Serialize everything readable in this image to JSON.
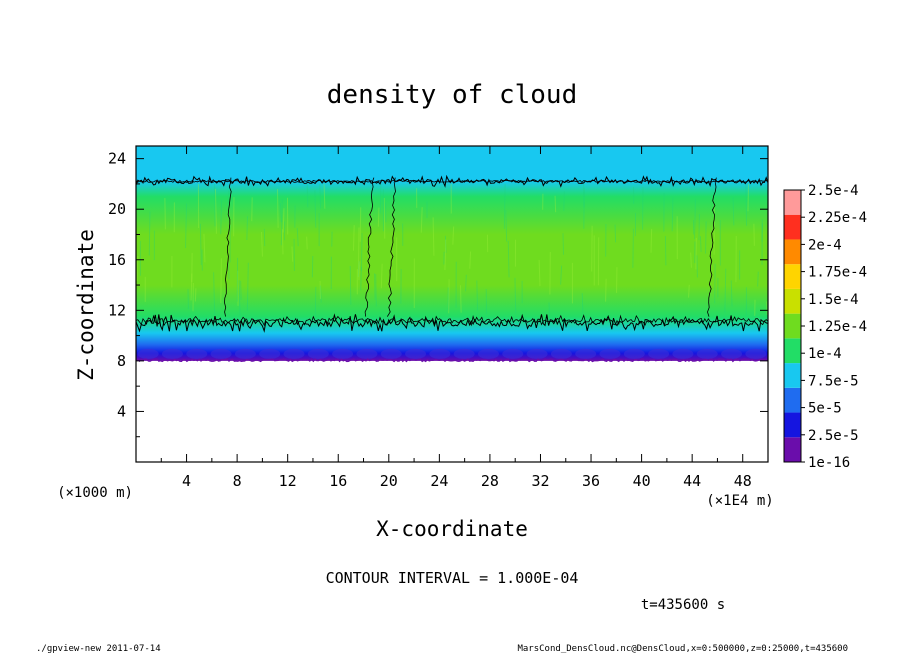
{
  "chart_data": {
    "type": "heatmap",
    "title": "density of cloud",
    "xlabel": "X-coordinate",
    "ylabel": "Z-coordinate",
    "x_unit": "(×1E4 m)",
    "y_unit": "(×1000 m)",
    "xlim": [
      0,
      50
    ],
    "ylim": [
      0,
      25
    ],
    "x_ticks": [
      "4",
      "8",
      "12",
      "16",
      "20",
      "24",
      "28",
      "32",
      "36",
      "40",
      "44",
      "48"
    ],
    "y_ticks": [
      "4",
      "8",
      "12",
      "16",
      "20",
      "24"
    ],
    "colorbar": {
      "labels": [
        "1e-16",
        "2.5e-5",
        "5e-5",
        "7.5e-5",
        "1e-4",
        "1.25e-4",
        "1.5e-4",
        "1.75e-4",
        "2e-4",
        "2.25e-4",
        "2.5e-4"
      ],
      "colors": [
        "#6a0dab",
        "#1515e0",
        "#1f6cf0",
        "#18c8f0",
        "#22dd66",
        "#6fdc1f",
        "#c9e000",
        "#ffd400",
        "#ff8a00",
        "#ff2f1f",
        "#ff9a9a"
      ]
    },
    "cloud_layer": {
      "bottom_z": 8,
      "top_z": 22.3,
      "upper_contour_z": 22.2,
      "lower_contour_z": 11,
      "vertical_profile": [
        {
          "z": 8.0,
          "value": 1e-16
        },
        {
          "z": 8.6,
          "value": 2.5e-05
        },
        {
          "z": 9.3,
          "value": 5e-05
        },
        {
          "z": 10.2,
          "value": 7.5e-05
        },
        {
          "z": 11.5,
          "value": 0.0001
        },
        {
          "z": 14.0,
          "value": 0.000125
        },
        {
          "z": 18.0,
          "value": 0.000125
        },
        {
          "z": 21.0,
          "value": 0.0001
        },
        {
          "z": 22.2,
          "value": 7.5e-05
        },
        {
          "z": 25.0,
          "value": 7.5e-05
        }
      ]
    },
    "contour_interval": "CONTOUR INTERVAL = 1.000E-04",
    "time_label": "t=435600 s"
  },
  "footer": {
    "left": "./gpview-new  2011-07-14",
    "right": "MarsCond_DensCloud.nc@DensCloud,x=0:500000,z=0:25000,t=435600"
  }
}
